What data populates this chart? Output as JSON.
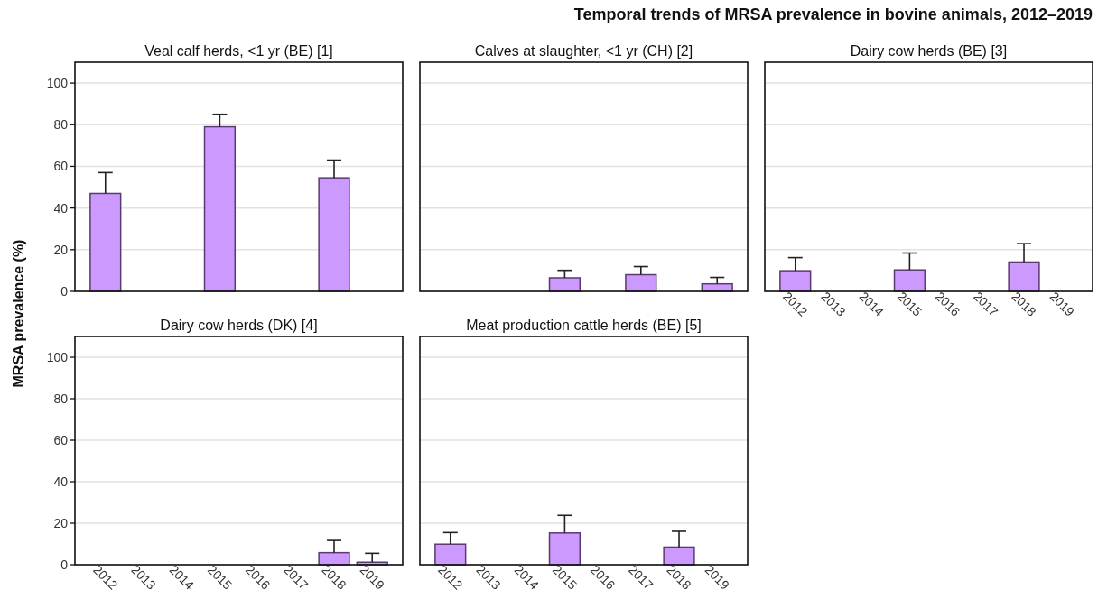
{
  "chart_data": [
    {
      "type": "bar",
      "title": "Veal calf herds, <1 yr (BE) [1]",
      "ylabel": "MRSA prevalence (%)",
      "annotations": [
        "Temporal trends of MRSA prevalence in bovine animals, 2012–2019"
      ],
      "categories": [
        "2012",
        "2013",
        "2014",
        "2015",
        "2016",
        "2017",
        "2018",
        "2019"
      ],
      "values": [
        47,
        null,
        null,
        79,
        null,
        null,
        54.5,
        null
      ],
      "errors": [
        [
          47,
          57
        ],
        null,
        null,
        [
          79,
          85
        ],
        null,
        null,
        [
          54.5,
          63
        ],
        null
      ],
      "color": "#cc99ff",
      "ylim": [
        0,
        110
      ],
      "yticks": [
        0,
        20,
        40,
        60,
        80,
        100
      ],
      "grid": "y",
      "tick_labels": "y"
    },
    {
      "type": "bar",
      "title": "Calves at slaughter, <1 yr (CH) [2]",
      "categories": [
        "2012",
        "2013",
        "2014",
        "2015",
        "2016",
        "2017",
        "2018",
        "2019"
      ],
      "values": [
        null,
        null,
        null,
        6.5,
        null,
        8,
        null,
        3.6
      ],
      "errors": [
        null,
        null,
        null,
        [
          6.5,
          10.1
        ],
        null,
        [
          8,
          11.9
        ],
        null,
        [
          3.6,
          6.7
        ]
      ],
      "color": "#cc99ff",
      "ylim": [
        0,
        110
      ],
      "yticks": [
        0,
        20,
        40,
        60,
        80,
        100
      ],
      "grid": "y",
      "tick_labels": false
    },
    {
      "type": "bar",
      "title": "Dairy cow herds (BE) [3]",
      "categories": [
        "2012",
        "2013",
        "2014",
        "2015",
        "2016",
        "2017",
        "2018",
        "2019"
      ],
      "values": [
        9.9,
        null,
        null,
        10.3,
        null,
        null,
        14.1,
        null
      ],
      "errors": [
        [
          9.9,
          16.2
        ],
        null,
        null,
        [
          10.3,
          18.4
        ],
        null,
        null,
        [
          14.1,
          22.9
        ],
        null
      ],
      "color": "#cc99ff",
      "ylim": [
        0,
        110
      ],
      "yticks": [
        0,
        20,
        40,
        60,
        80,
        100
      ],
      "grid": "y",
      "tick_labels": "x"
    },
    {
      "type": "bar",
      "title": "Dairy cow herds (DK) [4]",
      "categories": [
        "2012",
        "2013",
        "2014",
        "2015",
        "2016",
        "2017",
        "2018",
        "2019"
      ],
      "values": [
        null,
        null,
        null,
        null,
        null,
        null,
        5.8,
        1.2
      ],
      "errors": [
        null,
        null,
        null,
        null,
        null,
        null,
        [
          5.8,
          11.7
        ],
        [
          1.2,
          5.5
        ]
      ],
      "color": "#cc99ff",
      "ylim": [
        0,
        110
      ],
      "yticks": [
        0,
        20,
        40,
        60,
        80,
        100
      ],
      "grid": "y"
    },
    {
      "type": "bar",
      "title": "Meat production cattle herds (BE) [5]",
      "categories": [
        "2012",
        "2013",
        "2014",
        "2015",
        "2016",
        "2017",
        "2018",
        "2019"
      ],
      "values": [
        9.9,
        null,
        null,
        15.3,
        null,
        null,
        8.5,
        null
      ],
      "errors": [
        [
          9.9,
          15.5
        ],
        null,
        null,
        [
          15.3,
          23.8
        ],
        null,
        null,
        [
          8.5,
          16.1
        ],
        null
      ],
      "color": "#cc99ff",
      "ylim": [
        0,
        110
      ],
      "yticks": [
        0,
        20,
        40,
        60,
        80,
        100
      ],
      "grid": "y",
      "tick_labels": "x"
    }
  ]
}
